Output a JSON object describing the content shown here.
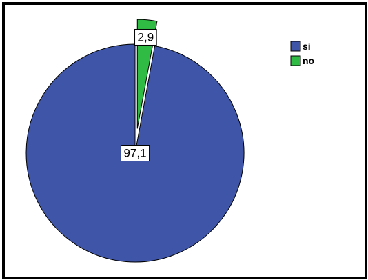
{
  "chart_data": {
    "type": "pie",
    "title": "",
    "categories": [
      "si",
      "no"
    ],
    "values": [
      97.1,
      2.9
    ],
    "data_labels": [
      "97,1",
      "2,9"
    ],
    "colors": [
      "#3f55a8",
      "#2fbb44"
    ],
    "exploded": [
      "no"
    ],
    "legend": {
      "placement": "top-right",
      "entries": [
        "si",
        "no"
      ]
    }
  }
}
